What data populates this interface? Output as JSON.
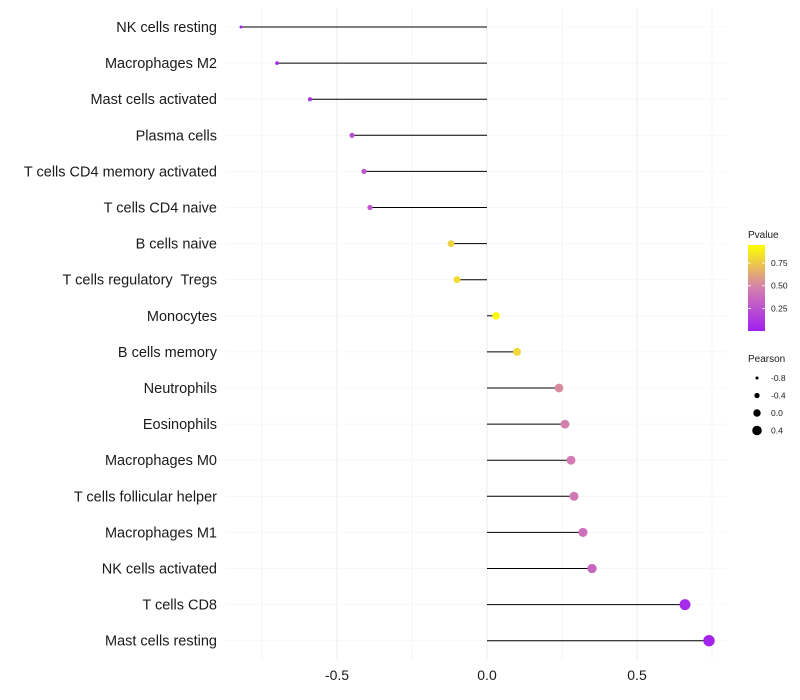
{
  "chart_data": {
    "type": "lollipop",
    "title": "",
    "xlabel": "",
    "ylabel": "",
    "xlim": [
      -0.9,
      0.76
    ],
    "x_ticks": [
      -0.5,
      0.0,
      0.5
    ],
    "x_tick_labels": [
      "-0.5",
      "0.0",
      "0.5"
    ],
    "grid": true,
    "colors": {
      "low": "#a020f0",
      "mid": "#d47fb0",
      "high": "#ffff00",
      "stem": "#000000"
    },
    "points": [
      {
        "label": "NK cells resting",
        "pearson": -0.82,
        "pvalue": 0.02
      },
      {
        "label": "Macrophages M2",
        "pearson": -0.7,
        "pvalue": 0.03
      },
      {
        "label": "Mast cells activated",
        "pearson": -0.59,
        "pvalue": 0.1
      },
      {
        "label": "Plasma cells",
        "pearson": -0.45,
        "pvalue": 0.22
      },
      {
        "label": "T cells CD4 memory activated",
        "pearson": -0.41,
        "pvalue": 0.26
      },
      {
        "label": "T cells CD4 naive",
        "pearson": -0.39,
        "pvalue": 0.28
      },
      {
        "label": "B cells naive",
        "pearson": -0.12,
        "pvalue": 0.78
      },
      {
        "label": "T cells regulatory  Tregs",
        "pearson": -0.1,
        "pvalue": 0.82
      },
      {
        "label": "Monocytes",
        "pearson": 0.03,
        "pvalue": 0.93
      },
      {
        "label": "B cells memory",
        "pearson": 0.1,
        "pvalue": 0.8
      },
      {
        "label": "Neutrophils",
        "pearson": 0.24,
        "pvalue": 0.52
      },
      {
        "label": "Eosinophils",
        "pearson": 0.26,
        "pvalue": 0.48
      },
      {
        "label": "Macrophages M0",
        "pearson": 0.28,
        "pvalue": 0.45
      },
      {
        "label": "T cells follicular helper",
        "pearson": 0.29,
        "pvalue": 0.44
      },
      {
        "label": "Macrophages M1",
        "pearson": 0.32,
        "pvalue": 0.4
      },
      {
        "label": "NK cells activated",
        "pearson": 0.35,
        "pvalue": 0.35
      },
      {
        "label": "T cells CD8",
        "pearson": 0.66,
        "pvalue": 0.05
      },
      {
        "label": "Mast cells resting",
        "pearson": 0.74,
        "pvalue": 0.02
      }
    ],
    "legend_color": {
      "title": "Pvalue",
      "ticks": [
        0.75,
        0.5,
        0.25
      ],
      "tick_labels": [
        "0.75",
        "0.50",
        "0.25"
      ],
      "range": [
        0.0,
        0.95
      ]
    },
    "legend_size": {
      "title": "Pearson",
      "values": [
        -0.8,
        -0.4,
        0.0,
        0.4
      ],
      "labels": [
        "-0.8",
        "-0.4",
        "0.0",
        "0.4"
      ]
    }
  }
}
